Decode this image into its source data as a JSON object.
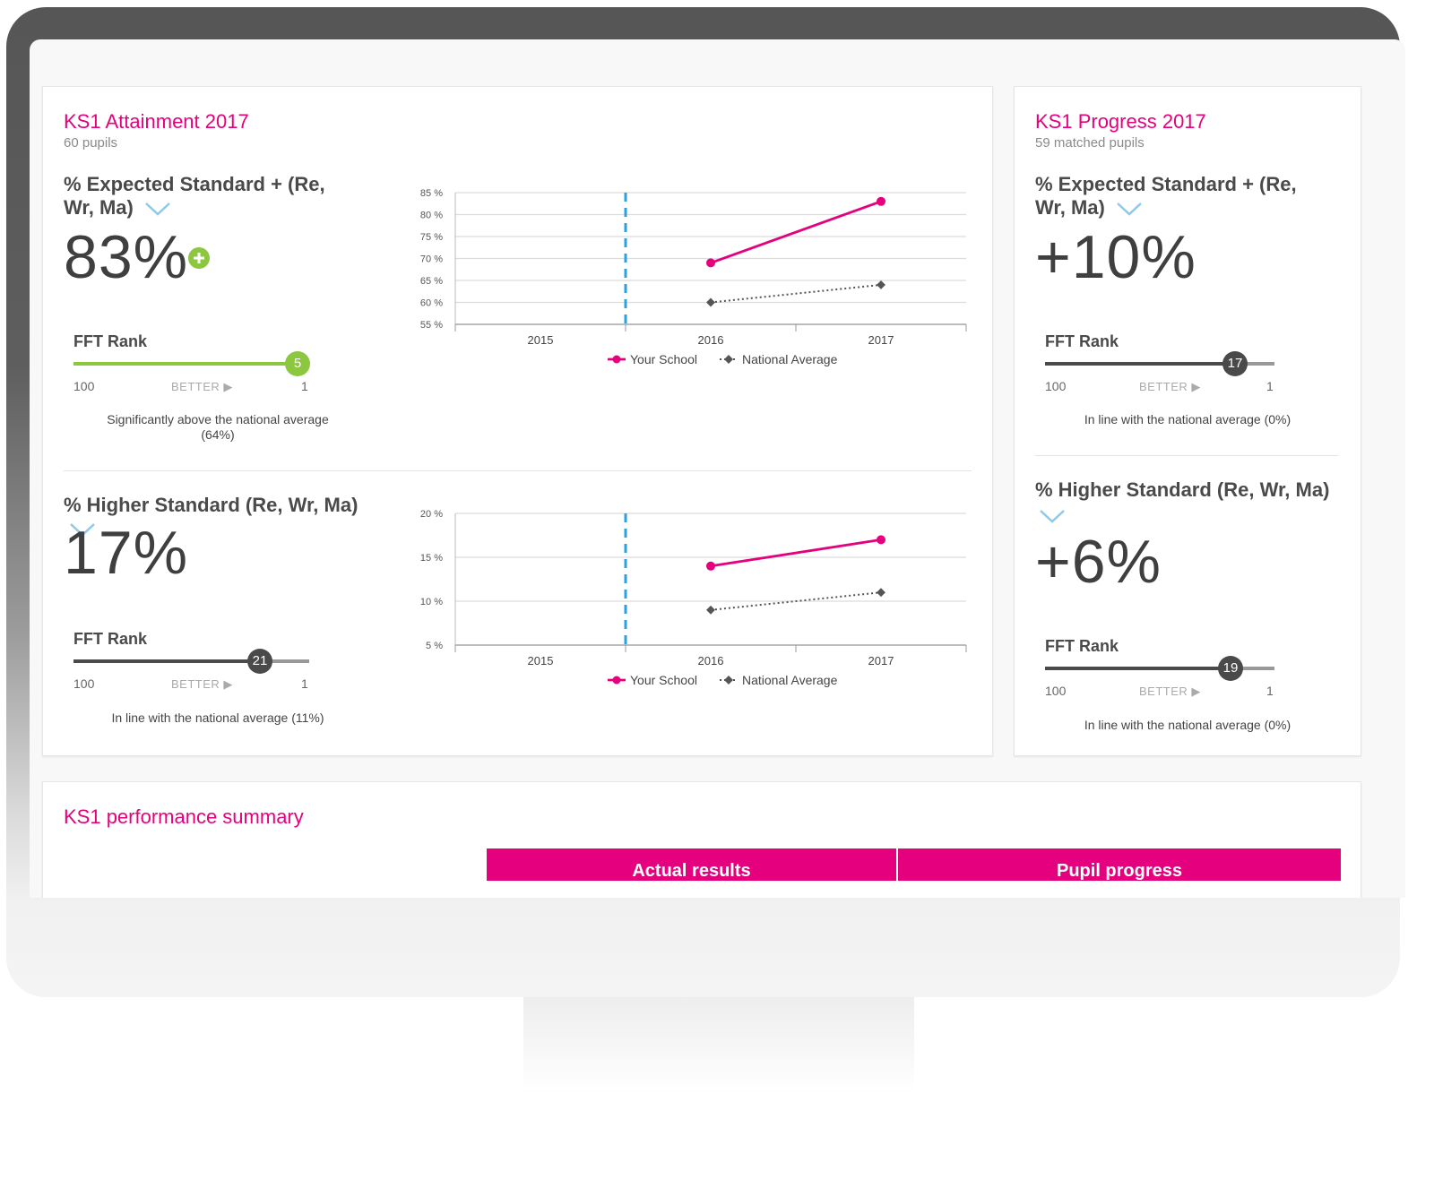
{
  "attainment": {
    "title": "KS1 Attainment 2017",
    "subtitle": "60 pupils",
    "expected": {
      "label": "% Expected Standard + (Re, Wr, Ma)",
      "value": "83%",
      "rank": {
        "label": "FFT Rank",
        "position": "5",
        "low": "100",
        "better": "BETTER",
        "high": "1"
      },
      "note": "Significantly above the national average (64%)"
    },
    "higher": {
      "label": "% Higher Standard (Re, Wr, Ma)",
      "value": "17%",
      "rank": {
        "label": "FFT Rank",
        "position": "21",
        "low": "100",
        "better": "BETTER",
        "high": "1"
      },
      "note": "In line with the national average (11%)"
    }
  },
  "progress": {
    "title": "KS1 Progress 2017",
    "subtitle": "59 matched pupils",
    "expected": {
      "label": "% Expected Standard + (Re, Wr, Ma)",
      "value": "+10%",
      "rank": {
        "label": "FFT Rank",
        "position": "17",
        "low": "100",
        "better": "BETTER",
        "high": "1"
      },
      "note": "In line with the national average (0%)"
    },
    "higher": {
      "label": "% Higher Standard (Re, Wr, Ma)",
      "value": "+6%",
      "rank": {
        "label": "FFT Rank",
        "position": "19",
        "low": "100",
        "better": "BETTER",
        "high": "1"
      },
      "note": "In line with the national average (0%)"
    }
  },
  "summary": {
    "title": "KS1 performance summary",
    "col_actual": "Actual results",
    "col_progress": "Pupil progress"
  },
  "colors": {
    "school": "#e5007e",
    "national": "#555555",
    "accent_green": "#8dc63f",
    "marker_blue": "#29a3db"
  },
  "chart_data": [
    {
      "type": "line",
      "x": [
        "2015",
        "2016",
        "2017"
      ],
      "yticks": [
        "55 %",
        "60 %",
        "65 %",
        "70 %",
        "75 %",
        "80 %",
        "85 %"
      ],
      "ylim": [
        55,
        85
      ],
      "series": [
        {
          "name": "Your School",
          "values": [
            null,
            69,
            83
          ]
        },
        {
          "name": "National Average",
          "values": [
            null,
            60,
            64
          ]
        }
      ],
      "legend": "bottom-center",
      "grid": true
    },
    {
      "type": "line",
      "x": [
        "2015",
        "2016",
        "2017"
      ],
      "yticks": [
        "5 %",
        "10 %",
        "15 %",
        "20 %"
      ],
      "ylim": [
        5,
        20
      ],
      "series": [
        {
          "name": "Your School",
          "values": [
            null,
            14,
            17
          ]
        },
        {
          "name": "National Average",
          "values": [
            null,
            9,
            11
          ]
        }
      ],
      "legend": "bottom-center",
      "grid": true
    }
  ]
}
